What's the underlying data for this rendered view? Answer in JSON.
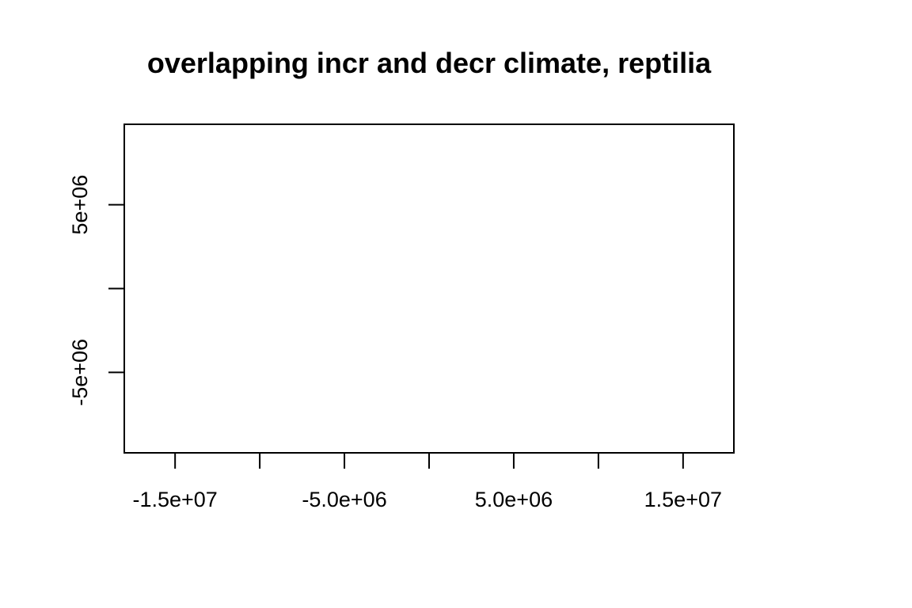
{
  "chart_data": {
    "type": "scatter",
    "title": "overlapping incr and decr climate, reptilia",
    "xlabel": "",
    "ylabel": "",
    "xlim": [
      -18000000,
      18000000
    ],
    "ylim": [
      -9800000,
      9800000
    ],
    "x_ticks": [
      -15000000,
      -10000000,
      -5000000,
      0,
      5000000,
      10000000,
      15000000
    ],
    "x_tick_labels": [
      "-1.5e+07",
      "",
      "-5.0e+06",
      "",
      "5.0e+06",
      "",
      "1.5e+07"
    ],
    "y_ticks": [
      -5000000,
      0,
      5000000
    ],
    "y_tick_labels": [
      "-5e+06",
      "",
      "5e+06"
    ],
    "series": [],
    "grid": false,
    "legend": "none"
  }
}
